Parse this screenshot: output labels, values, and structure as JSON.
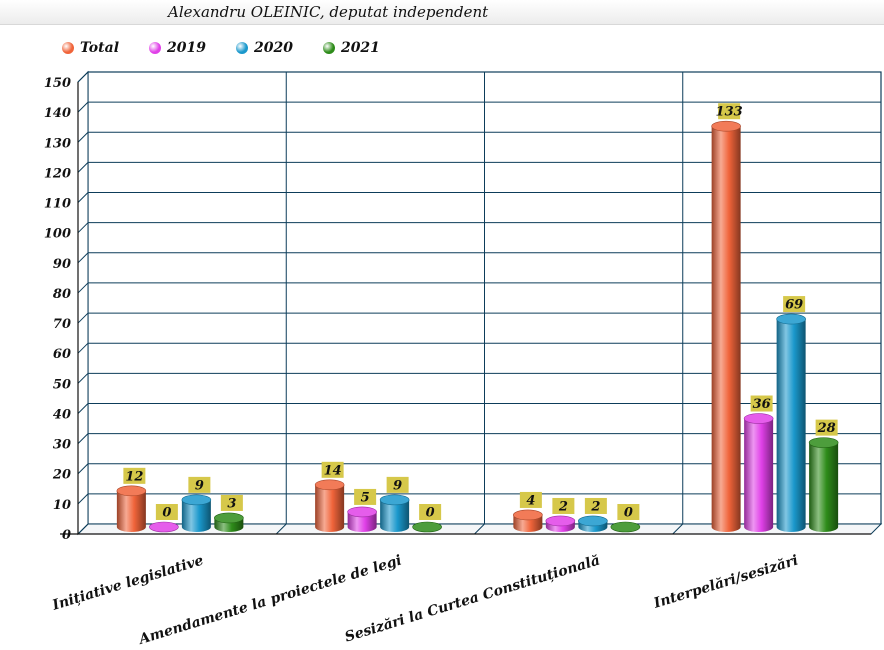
{
  "title": "Alexandru OLEINIC, deputat independent",
  "legend": [
    {
      "name": "Total",
      "color": "#f0643a"
    },
    {
      "name": "2019",
      "color": "#e040e8"
    },
    {
      "name": "2020",
      "color": "#1a98cc"
    },
    {
      "name": "2021",
      "color": "#2e8c1a"
    }
  ],
  "chart_data": {
    "type": "bar",
    "title": "Alexandru OLEINIC, deputat independent",
    "categories": [
      "Inițiative legislative",
      "Amendamente la proiectele de legi",
      "Sesizări la Curtea Constituțională",
      "Interpelări/sesizări"
    ],
    "series": [
      {
        "name": "Total",
        "values": [
          12,
          14,
          4,
          133
        ],
        "color": "#f0643a"
      },
      {
        "name": "2019",
        "values": [
          0,
          5,
          2,
          36
        ],
        "color": "#e040e8"
      },
      {
        "name": "2020",
        "values": [
          9,
          9,
          2,
          69
        ],
        "color": "#1a98cc"
      },
      {
        "name": "2021",
        "values": [
          3,
          0,
          0,
          28
        ],
        "color": "#2e8c1a"
      }
    ],
    "ylim": [
      0,
      150
    ],
    "yticks": [
      "0",
      "10",
      "20",
      "30",
      "40",
      "50",
      "60",
      "70",
      "80",
      "90",
      "100",
      "110",
      "120",
      "130",
      "140",
      "150"
    ],
    "grid": true,
    "data_labels": true,
    "legend_position": "top-left",
    "xlabel": "",
    "ylabel": ""
  }
}
